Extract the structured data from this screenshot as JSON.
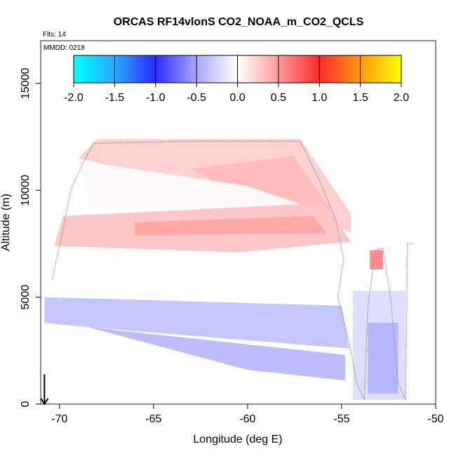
{
  "chart_data": {
    "type": "heatmap",
    "title": "ORCAS RF14vlonS CO2_NOAA_m_CO2_QCLS",
    "annotations": [
      "Flts: 14",
      "MMDD: 0218"
    ],
    "xlabel": "Longitude (deg E)",
    "ylabel": "Altitude (m)",
    "xlim": [
      -71,
      -50
    ],
    "ylim": [
      0,
      17000
    ],
    "x_ticks": [
      -70,
      -65,
      -60,
      -55,
      -50
    ],
    "y_ticks": [
      0,
      5000,
      10000,
      15000
    ],
    "x_tick_labels": [
      "-70",
      "-65",
      "-60",
      "-55",
      "-50"
    ],
    "y_tick_labels": [
      "0",
      "5000",
      "10000",
      "15000"
    ],
    "colorbar": {
      "range": [
        -2,
        2
      ],
      "ticks": [
        -2,
        -1.5,
        -1,
        -0.5,
        0,
        0.5,
        1,
        1.5,
        2
      ],
      "tick_labels": [
        "-2.0",
        "-1.5",
        "-1.0",
        "-0.5",
        "0.0",
        "0.5",
        "1.0",
        "1.5",
        "2.0"
      ],
      "stops": [
        {
          "value": -2.0,
          "color": "#00ffff"
        },
        {
          "value": -1.5,
          "color": "#2aa9ff"
        },
        {
          "value": -1.0,
          "color": "#2a2aff"
        },
        {
          "value": -0.5,
          "color": "#a8a8ff"
        },
        {
          "value": 0.0,
          "color": "#ffffff"
        },
        {
          "value": 0.5,
          "color": "#ff9c9c"
        },
        {
          "value": 1.0,
          "color": "#ff2a2a"
        },
        {
          "value": 1.5,
          "color": "#ff9a10"
        },
        {
          "value": 2.0,
          "color": "#ffff00"
        }
      ]
    },
    "regions": [
      {
        "name": "upper-positive-band",
        "value": 0.25,
        "polygon": [
          [
            -68.0,
            12400
          ],
          [
            -57.2,
            12400
          ],
          [
            -54.5,
            8900
          ],
          [
            -54.5,
            8000
          ],
          [
            -58,
            9200
          ],
          [
            -68.5,
            11400
          ],
          [
            -69,
            11500
          ]
        ]
      },
      {
        "name": "upper-core",
        "value": 0.35,
        "polygon": [
          [
            -63,
            11000
          ],
          [
            -57.6,
            11600
          ],
          [
            -55.5,
            9000
          ],
          [
            -58,
            8600
          ]
        ]
      },
      {
        "name": "middle-white",
        "value": 0.02,
        "polygon": [
          [
            -69,
            11400
          ],
          [
            -60,
            10200
          ],
          [
            -56,
            9000
          ],
          [
            -68.5,
            9200
          ]
        ]
      },
      {
        "name": "mid-positive-band",
        "value": 0.3,
        "polygon": [
          [
            -69.8,
            8800
          ],
          [
            -56,
            9400
          ],
          [
            -54.5,
            7600
          ],
          [
            -60.5,
            7100
          ],
          [
            -70.3,
            7400
          ]
        ]
      },
      {
        "name": "mid-strong-band",
        "value": 0.45,
        "polygon": [
          [
            -66,
            8500
          ],
          [
            -56.5,
            8800
          ],
          [
            -55.8,
            8000
          ],
          [
            -66,
            7900
          ]
        ]
      },
      {
        "name": "east-patch",
        "value": 0.6,
        "polygon": [
          [
            -53.5,
            7200
          ],
          [
            -52.8,
            7200
          ],
          [
            -52.8,
            6300
          ],
          [
            -53.5,
            6300
          ]
        ]
      },
      {
        "name": "lower-white-band",
        "value": 0.0,
        "polygon": [
          [
            -70.5,
            6900
          ],
          [
            -55.2,
            7000
          ],
          [
            -55.0,
            5000
          ],
          [
            -70.5,
            5000
          ]
        ]
      },
      {
        "name": "low-negative-band",
        "value": -0.35,
        "polygon": [
          [
            -70.8,
            5000
          ],
          [
            -55.0,
            4600
          ],
          [
            -54.6,
            2600
          ],
          [
            -68.5,
            3600
          ],
          [
            -70.8,
            3800
          ]
        ]
      },
      {
        "name": "low-negative-stripe",
        "value": -0.4,
        "polygon": [
          [
            -68.5,
            3600
          ],
          [
            -54.8,
            2300
          ],
          [
            -54.8,
            1100
          ],
          [
            -60,
            1600
          ]
        ]
      },
      {
        "name": "east-column",
        "value": -0.2,
        "polygon": [
          [
            -54.4,
            5300
          ],
          [
            -51.6,
            5300
          ],
          [
            -51.6,
            200
          ],
          [
            -54.4,
            200
          ]
        ]
      },
      {
        "name": "east-column-core",
        "value": -0.45,
        "polygon": [
          [
            -53.6,
            3800
          ],
          [
            -52.0,
            3800
          ],
          [
            -52.0,
            500
          ],
          [
            -53.6,
            500
          ]
        ]
      }
    ],
    "flight_track": [
      [
        -70.4,
        5800
      ],
      [
        -69.9,
        7800
      ],
      [
        -69.4,
        10000
      ],
      [
        -68.8,
        11200
      ],
      [
        -68.2,
        12200
      ],
      [
        -63,
        12300
      ],
      [
        -57.2,
        12300
      ],
      [
        -56.2,
        10500
      ],
      [
        -55.3,
        8600
      ],
      [
        -54.9,
        6800
      ],
      [
        -55.2,
        5000
      ],
      [
        -54.6,
        2900
      ],
      [
        -54.2,
        1000
      ],
      [
        -53.8,
        200
      ],
      [
        -53.6,
        4600
      ],
      [
        -53.2,
        7200
      ],
      [
        -52.8,
        7300
      ],
      [
        -52.4,
        5000
      ],
      [
        -52.0,
        1000
      ],
      [
        -51.6,
        200
      ],
      [
        -51.5,
        7500
      ],
      [
        -51.2,
        7500
      ]
    ],
    "arrow": {
      "longitude": -70.8,
      "from_altitude": 800,
      "to_altitude": 0
    }
  }
}
